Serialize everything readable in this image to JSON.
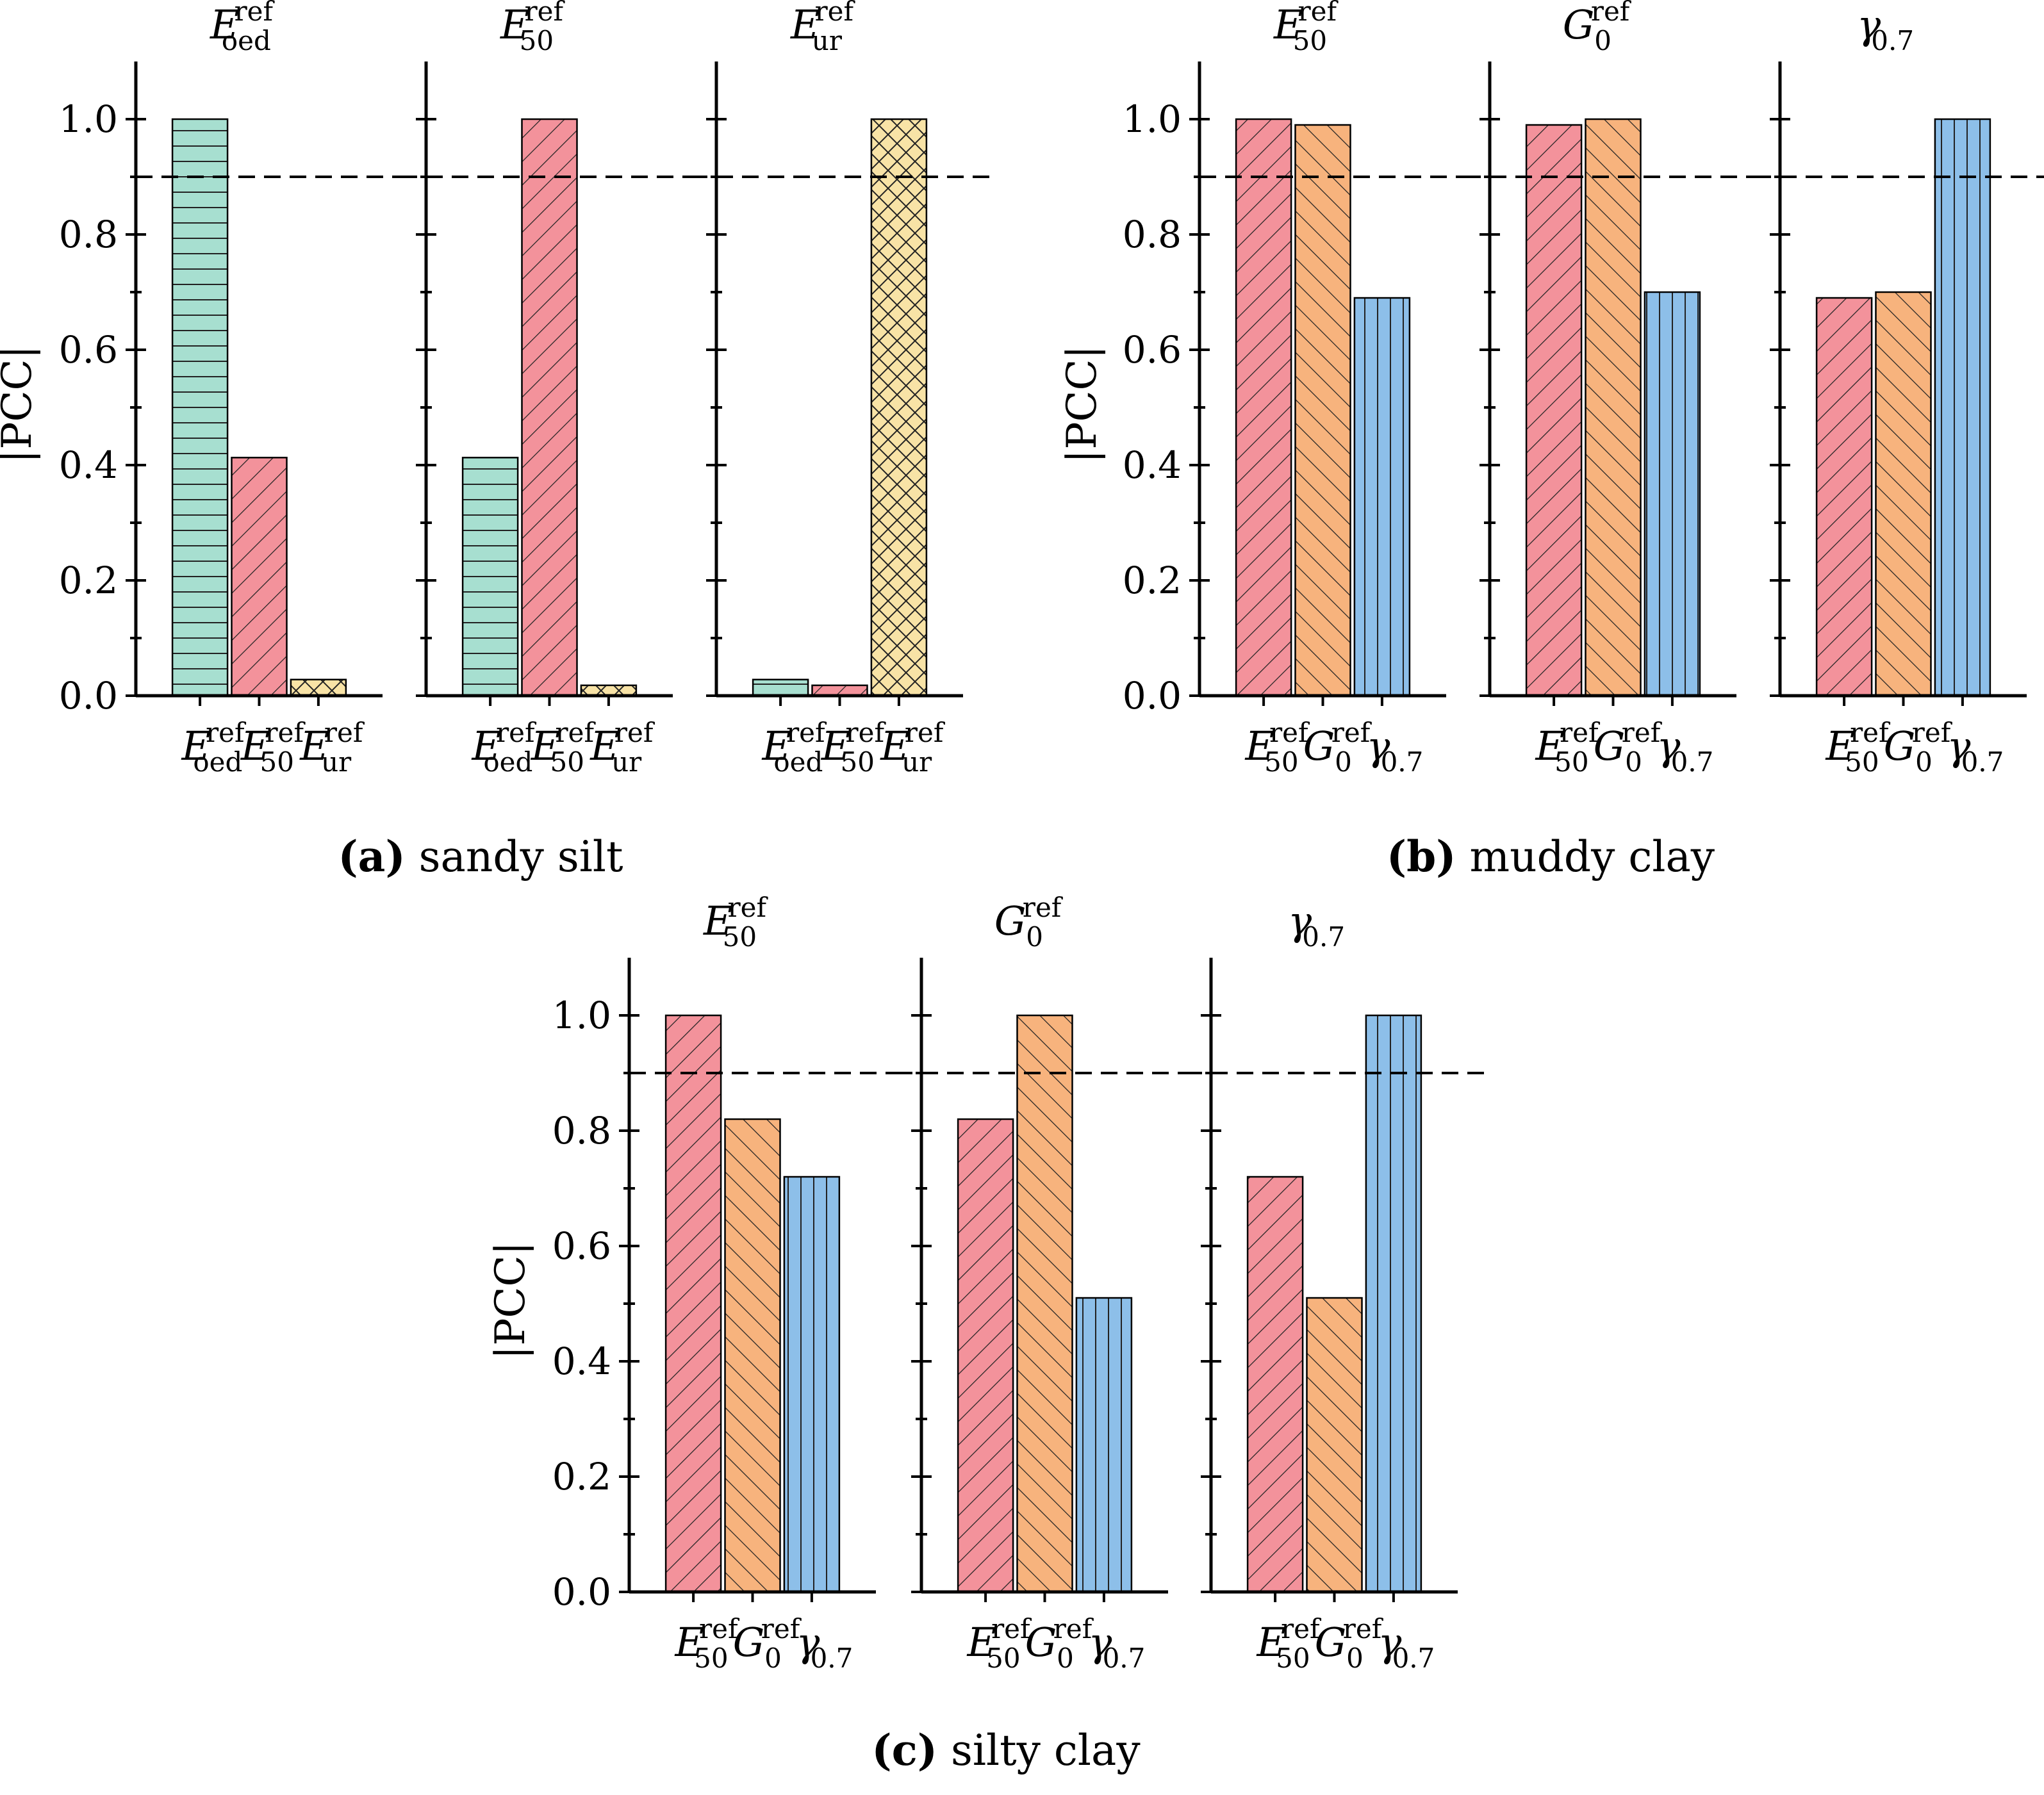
{
  "chart_data": {
    "type": "bar",
    "ylabel": "|PCC|",
    "ylim": [
      0,
      1.1
    ],
    "yticks": [
      "0.0",
      "0.2",
      "0.4",
      "0.6",
      "0.8",
      "1.0"
    ],
    "threshold": 0.9,
    "colors": {
      "E_oed": "#a7dfd0",
      "E_50": "#f3929b",
      "E_ur": "#f8e3a6",
      "G_0": "#f7b37d",
      "gamma": "#8dbfe9",
      "hatch": "#222222"
    },
    "groups": [
      {
        "id": "a",
        "caption_letter": "(a)",
        "caption_text": " sandy silt",
        "categories": [
          {
            "main": "E",
            "sup": "ref",
            "sub": "oed",
            "key": "E_oed"
          },
          {
            "main": "E",
            "sup": "ref",
            "sub": "50",
            "key": "E_50"
          },
          {
            "main": "E",
            "sup": "ref",
            "sub": "ur",
            "key": "E_ur"
          }
        ],
        "panels": [
          {
            "title": {
              "main": "E",
              "sup": "ref",
              "sub": "oed"
            },
            "values": [
              1.0,
              0.413,
              0.028
            ]
          },
          {
            "title": {
              "main": "E",
              "sup": "ref",
              "sub": "50"
            },
            "values": [
              0.413,
              1.0,
              0.018
            ]
          },
          {
            "title": {
              "main": "E",
              "sup": "ref",
              "sub": "ur"
            },
            "values": [
              0.028,
              0.018,
              1.0
            ]
          }
        ]
      },
      {
        "id": "b",
        "caption_letter": "(b)",
        "caption_text": " muddy clay",
        "categories": [
          {
            "main": "E",
            "sup": "ref",
            "sub": "50",
            "key": "E_50"
          },
          {
            "main": "G",
            "sup": "ref",
            "sub": "0",
            "key": "G_0"
          },
          {
            "main": "γ",
            "sup": "",
            "sub": "0.7",
            "key": "gamma"
          }
        ],
        "panels": [
          {
            "title": {
              "main": "E",
              "sup": "ref",
              "sub": "50"
            },
            "values": [
              1.0,
              0.99,
              0.69
            ]
          },
          {
            "title": {
              "main": "G",
              "sup": "ref",
              "sub": "0"
            },
            "values": [
              0.99,
              1.0,
              0.7
            ]
          },
          {
            "title": {
              "main": "γ",
              "sup": "",
              "sub": "0.7"
            },
            "values": [
              0.69,
              0.7,
              1.0
            ]
          }
        ]
      },
      {
        "id": "c",
        "caption_letter": "(c)",
        "caption_text": " silty clay",
        "categories": [
          {
            "main": "E",
            "sup": "ref",
            "sub": "50",
            "key": "E_50"
          },
          {
            "main": "G",
            "sup": "ref",
            "sub": "0",
            "key": "G_0"
          },
          {
            "main": "γ",
            "sup": "",
            "sub": "0.7",
            "key": "gamma"
          }
        ],
        "panels": [
          {
            "title": {
              "main": "E",
              "sup": "ref",
              "sub": "50"
            },
            "values": [
              1.0,
              0.82,
              0.72
            ]
          },
          {
            "title": {
              "main": "G",
              "sup": "ref",
              "sub": "0"
            },
            "values": [
              0.82,
              1.0,
              0.51
            ]
          },
          {
            "title": {
              "main": "γ",
              "sup": "",
              "sub": "0.7"
            },
            "values": [
              0.72,
              0.51,
              1.0
            ]
          }
        ]
      }
    ]
  }
}
